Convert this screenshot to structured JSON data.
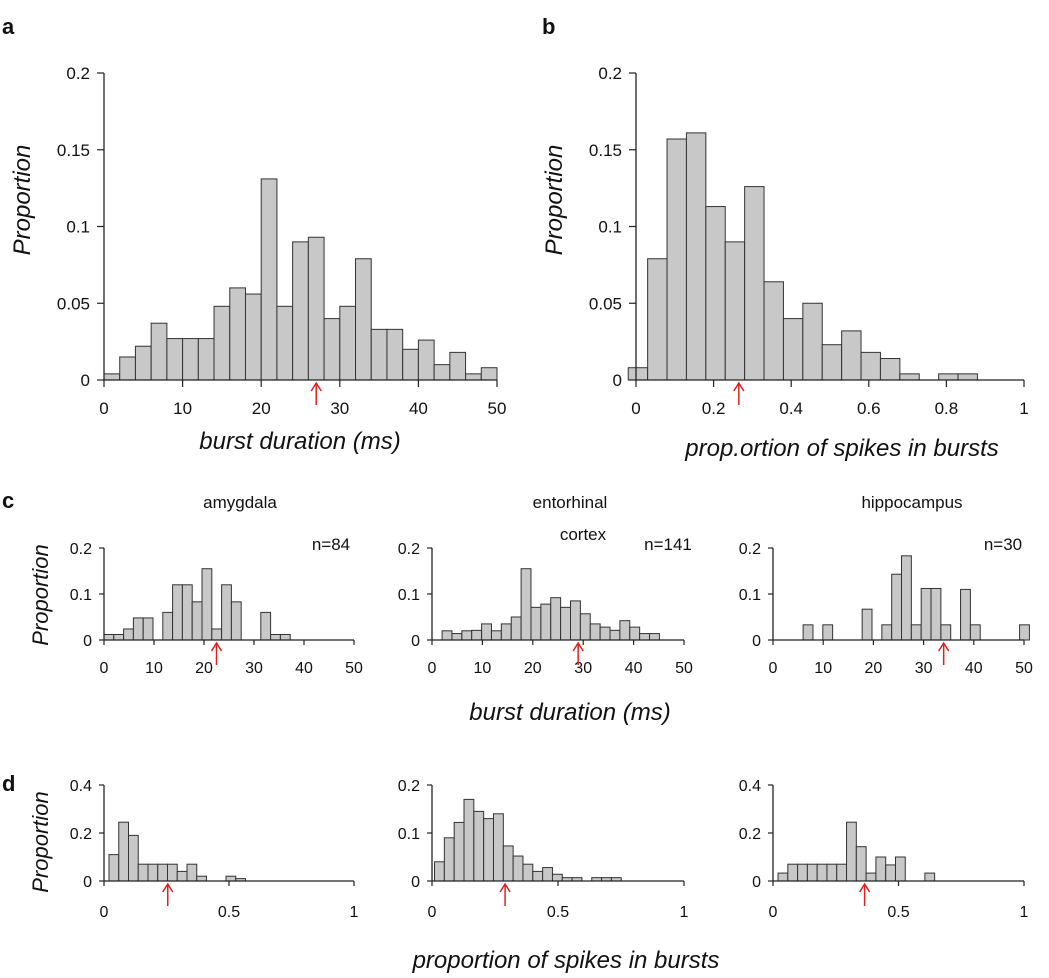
{
  "panel_letters": {
    "a": "a",
    "b": "b",
    "c": "c",
    "d": "d"
  },
  "ylabel": "Proportion",
  "row_labels": {
    "c_xlabel": "burst duration (ms)",
    "d_xlabel": "proportion of spikes in bursts"
  },
  "colors": {
    "bar_fill": "#c8c8c8",
    "bar_stroke": "#333333",
    "arrow": "#e0201e",
    "axis": "#222222"
  },
  "chart_data": [
    {
      "id": "a",
      "type": "bar",
      "xlabel": "burst duration (ms)",
      "ylabel": "Proportion",
      "xlim": [
        0,
        50
      ],
      "ylim": [
        0,
        0.2
      ],
      "bin_start": 0,
      "bin_width": 2,
      "x_ticks": [
        0,
        10,
        20,
        30,
        40,
        50
      ],
      "y_ticks": [
        0,
        0.05,
        0.1,
        0.15,
        0.2
      ],
      "y_tick_labels": [
        "0",
        "0.05",
        "0.1",
        "0.15",
        "0.2"
      ],
      "values": [
        0.004,
        0.015,
        0.022,
        0.037,
        0.027,
        0.027,
        0.027,
        0.048,
        0.06,
        0.056,
        0.131,
        0.048,
        0.09,
        0.093,
        0.04,
        0.048,
        0.079,
        0.033,
        0.033,
        0.02,
        0.026,
        0.01,
        0.018,
        0.004,
        0.008
      ],
      "arrow_x": 27
    },
    {
      "id": "b",
      "type": "bar",
      "xlabel": "prop.ortion of spikes in bursts",
      "ylabel": "Proportion",
      "xlim": [
        0,
        1
      ],
      "ylim": [
        0,
        0.2
      ],
      "bin_start": -0.02,
      "bin_width": 0.05,
      "x_ticks": [
        0,
        0.2,
        0.4,
        0.6,
        0.8,
        1
      ],
      "x_tick_labels": [
        "0",
        "0.2",
        "0.4",
        "0.6",
        "0.8",
        "1"
      ],
      "y_ticks": [
        0,
        0.05,
        0.1,
        0.15,
        0.2
      ],
      "y_tick_labels": [
        "0",
        "0.05",
        "0.1",
        "0.15",
        "0.2"
      ],
      "values": [
        0.008,
        0.079,
        0.157,
        0.161,
        0.113,
        0.09,
        0.126,
        0.064,
        0.04,
        0.05,
        0.023,
        0.032,
        0.018,
        0.014,
        0.004,
        0,
        0.004,
        0.004
      ],
      "arrow_x": 0.265
    },
    {
      "id": "c1",
      "type": "bar",
      "title": "amygdala",
      "n_label": "n=84",
      "xlim": [
        0,
        50
      ],
      "ylim": [
        0,
        0.2
      ],
      "bin_start": 0,
      "bin_width": 1.96,
      "x_ticks": [
        0,
        10,
        20,
        30,
        40,
        50
      ],
      "y_ticks": [
        0,
        0.1,
        0.2
      ],
      "y_tick_labels": [
        "0",
        "0.1",
        "0.2"
      ],
      "values": [
        0.012,
        0.012,
        0.024,
        0.048,
        0.048,
        0,
        0.06,
        0.12,
        0.12,
        0.083,
        0.155,
        0.024,
        0.12,
        0.083,
        0,
        0,
        0.06,
        0.012,
        0.012
      ],
      "arrow_x": 22.5
    },
    {
      "id": "c2",
      "type": "bar",
      "title": "entorhinal cortex",
      "title_lines": [
        "entorhinal",
        "cortex"
      ],
      "n_label": "n=141",
      "xlim": [
        0,
        50
      ],
      "ylim": [
        0,
        0.2
      ],
      "bin_start": 2,
      "bin_width": 1.96,
      "x_ticks": [
        0,
        10,
        20,
        30,
        40,
        50
      ],
      "y_ticks": [
        0,
        0.1,
        0.2
      ],
      "y_tick_labels": [
        "0",
        "0.1",
        "0.2"
      ],
      "values": [
        0.02,
        0.014,
        0.02,
        0.021,
        0.035,
        0.02,
        0.035,
        0.05,
        0.155,
        0.071,
        0.078,
        0.092,
        0.071,
        0.085,
        0.057,
        0.035,
        0.028,
        0.021,
        0.042,
        0.028,
        0.014,
        0.014
      ],
      "arrow_x": 29
    },
    {
      "id": "c3",
      "type": "bar",
      "title": "hippocampus",
      "n_label": "n=30",
      "xlim": [
        0,
        50
      ],
      "ylim": [
        0,
        0.2
      ],
      "bin_start": 6,
      "bin_width": 1.96,
      "x_ticks": [
        0,
        10,
        20,
        30,
        40,
        50
      ],
      "y_ticks": [
        0,
        0.1,
        0.2
      ],
      "y_tick_labels": [
        "0",
        "0.1",
        "0.2"
      ],
      "values": [
        0.033,
        0,
        0.033,
        0,
        0,
        0,
        0.067,
        0,
        0.033,
        0.143,
        0.183,
        0.033,
        0.112,
        0.112,
        0.033,
        0,
        0.11,
        0.033,
        0,
        0,
        0,
        0,
        0.033
      ],
      "arrow_x": 34
    },
    {
      "id": "d1",
      "type": "bar",
      "xlim": [
        0,
        1
      ],
      "ylim": [
        0,
        0.4
      ],
      "bin_start": 0.02,
      "bin_width": 0.039,
      "x_ticks": [
        0,
        0.5,
        1
      ],
      "x_tick_labels": [
        "0",
        "0.5",
        "1"
      ],
      "y_ticks": [
        0,
        0.2,
        0.4
      ],
      "y_tick_labels": [
        "0",
        "0.2",
        "0.4"
      ],
      "values": [
        0.11,
        0.245,
        0.19,
        0.07,
        0.07,
        0.07,
        0.07,
        0.04,
        0.07,
        0.02,
        0,
        0,
        0.02,
        0.01
      ],
      "arrow_x": 0.255
    },
    {
      "id": "d2",
      "type": "bar",
      "xlim": [
        0,
        1
      ],
      "ylim": [
        0,
        0.2
      ],
      "bin_start": 0.01,
      "bin_width": 0.039,
      "x_ticks": [
        0,
        0.5,
        1
      ],
      "x_tick_labels": [
        "0",
        "0.5",
        "1"
      ],
      "y_ticks": [
        0,
        0.1,
        0.2
      ],
      "y_tick_labels": [
        "0",
        "0.1",
        "0.2"
      ],
      "values": [
        0.04,
        0.09,
        0.122,
        0.17,
        0.145,
        0.13,
        0.14,
        0.073,
        0.052,
        0.035,
        0.02,
        0.028,
        0.014,
        0.007,
        0.007,
        0,
        0.007,
        0.007,
        0.007
      ],
      "arrow_x": 0.29
    },
    {
      "id": "d3",
      "type": "bar",
      "xlim": [
        0,
        1
      ],
      "ylim": [
        0,
        0.4
      ],
      "bin_start": 0.02,
      "bin_width": 0.039,
      "x_ticks": [
        0,
        0.5,
        1
      ],
      "x_tick_labels": [
        "0",
        "0.5",
        "1"
      ],
      "y_ticks": [
        0,
        0.2,
        0.4
      ],
      "y_tick_labels": [
        "0",
        "0.2",
        "0.4"
      ],
      "values": [
        0.033,
        0.07,
        0.07,
        0.07,
        0.07,
        0.07,
        0.07,
        0.245,
        0.143,
        0.033,
        0.1,
        0.067,
        0.1,
        0,
        0,
        0.033
      ],
      "arrow_x": 0.365
    }
  ]
}
